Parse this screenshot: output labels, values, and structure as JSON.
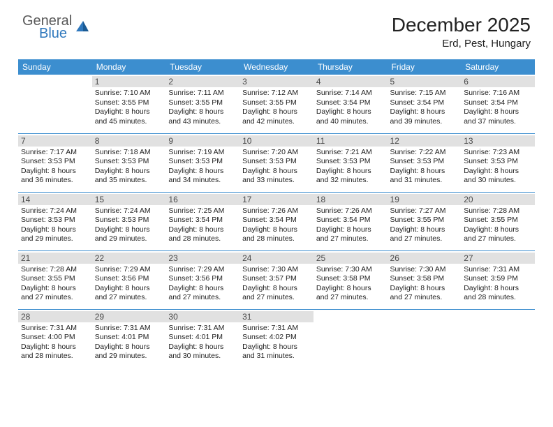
{
  "logo": {
    "top": "General",
    "bottom": "Blue"
  },
  "title": "December 2025",
  "location": "Erd, Pest, Hungary",
  "colors": {
    "header_bg": "#3c8ecf",
    "header_text": "#ffffff",
    "daynum_bg": "#e1e1e1",
    "daynum_text": "#4a4a4a",
    "border": "#3c8ecf",
    "logo_blue": "#2f78bd",
    "logo_gray": "#5a5a5a"
  },
  "weekdays": [
    "Sunday",
    "Monday",
    "Tuesday",
    "Wednesday",
    "Thursday",
    "Friday",
    "Saturday"
  ],
  "weeks": [
    [
      null,
      {
        "d": "1",
        "sr": "7:10 AM",
        "ss": "3:55 PM",
        "dl": "8 hours and 45 minutes."
      },
      {
        "d": "2",
        "sr": "7:11 AM",
        "ss": "3:55 PM",
        "dl": "8 hours and 43 minutes."
      },
      {
        "d": "3",
        "sr": "7:12 AM",
        "ss": "3:55 PM",
        "dl": "8 hours and 42 minutes."
      },
      {
        "d": "4",
        "sr": "7:14 AM",
        "ss": "3:54 PM",
        "dl": "8 hours and 40 minutes."
      },
      {
        "d": "5",
        "sr": "7:15 AM",
        "ss": "3:54 PM",
        "dl": "8 hours and 39 minutes."
      },
      {
        "d": "6",
        "sr": "7:16 AM",
        "ss": "3:54 PM",
        "dl": "8 hours and 37 minutes."
      }
    ],
    [
      {
        "d": "7",
        "sr": "7:17 AM",
        "ss": "3:53 PM",
        "dl": "8 hours and 36 minutes."
      },
      {
        "d": "8",
        "sr": "7:18 AM",
        "ss": "3:53 PM",
        "dl": "8 hours and 35 minutes."
      },
      {
        "d": "9",
        "sr": "7:19 AM",
        "ss": "3:53 PM",
        "dl": "8 hours and 34 minutes."
      },
      {
        "d": "10",
        "sr": "7:20 AM",
        "ss": "3:53 PM",
        "dl": "8 hours and 33 minutes."
      },
      {
        "d": "11",
        "sr": "7:21 AM",
        "ss": "3:53 PM",
        "dl": "8 hours and 32 minutes."
      },
      {
        "d": "12",
        "sr": "7:22 AM",
        "ss": "3:53 PM",
        "dl": "8 hours and 31 minutes."
      },
      {
        "d": "13",
        "sr": "7:23 AM",
        "ss": "3:53 PM",
        "dl": "8 hours and 30 minutes."
      }
    ],
    [
      {
        "d": "14",
        "sr": "7:24 AM",
        "ss": "3:53 PM",
        "dl": "8 hours and 29 minutes."
      },
      {
        "d": "15",
        "sr": "7:24 AM",
        "ss": "3:53 PM",
        "dl": "8 hours and 29 minutes."
      },
      {
        "d": "16",
        "sr": "7:25 AM",
        "ss": "3:54 PM",
        "dl": "8 hours and 28 minutes."
      },
      {
        "d": "17",
        "sr": "7:26 AM",
        "ss": "3:54 PM",
        "dl": "8 hours and 28 minutes."
      },
      {
        "d": "18",
        "sr": "7:26 AM",
        "ss": "3:54 PM",
        "dl": "8 hours and 27 minutes."
      },
      {
        "d": "19",
        "sr": "7:27 AM",
        "ss": "3:55 PM",
        "dl": "8 hours and 27 minutes."
      },
      {
        "d": "20",
        "sr": "7:28 AM",
        "ss": "3:55 PM",
        "dl": "8 hours and 27 minutes."
      }
    ],
    [
      {
        "d": "21",
        "sr": "7:28 AM",
        "ss": "3:55 PM",
        "dl": "8 hours and 27 minutes."
      },
      {
        "d": "22",
        "sr": "7:29 AM",
        "ss": "3:56 PM",
        "dl": "8 hours and 27 minutes."
      },
      {
        "d": "23",
        "sr": "7:29 AM",
        "ss": "3:56 PM",
        "dl": "8 hours and 27 minutes."
      },
      {
        "d": "24",
        "sr": "7:30 AM",
        "ss": "3:57 PM",
        "dl": "8 hours and 27 minutes."
      },
      {
        "d": "25",
        "sr": "7:30 AM",
        "ss": "3:58 PM",
        "dl": "8 hours and 27 minutes."
      },
      {
        "d": "26",
        "sr": "7:30 AM",
        "ss": "3:58 PM",
        "dl": "8 hours and 27 minutes."
      },
      {
        "d": "27",
        "sr": "7:31 AM",
        "ss": "3:59 PM",
        "dl": "8 hours and 28 minutes."
      }
    ],
    [
      {
        "d": "28",
        "sr": "7:31 AM",
        "ss": "4:00 PM",
        "dl": "8 hours and 28 minutes."
      },
      {
        "d": "29",
        "sr": "7:31 AM",
        "ss": "4:01 PM",
        "dl": "8 hours and 29 minutes."
      },
      {
        "d": "30",
        "sr": "7:31 AM",
        "ss": "4:01 PM",
        "dl": "8 hours and 30 minutes."
      },
      {
        "d": "31",
        "sr": "7:31 AM",
        "ss": "4:02 PM",
        "dl": "8 hours and 31 minutes."
      },
      null,
      null,
      null
    ]
  ],
  "labels": {
    "sunrise": "Sunrise:",
    "sunset": "Sunset:",
    "daylight": "Daylight:"
  }
}
